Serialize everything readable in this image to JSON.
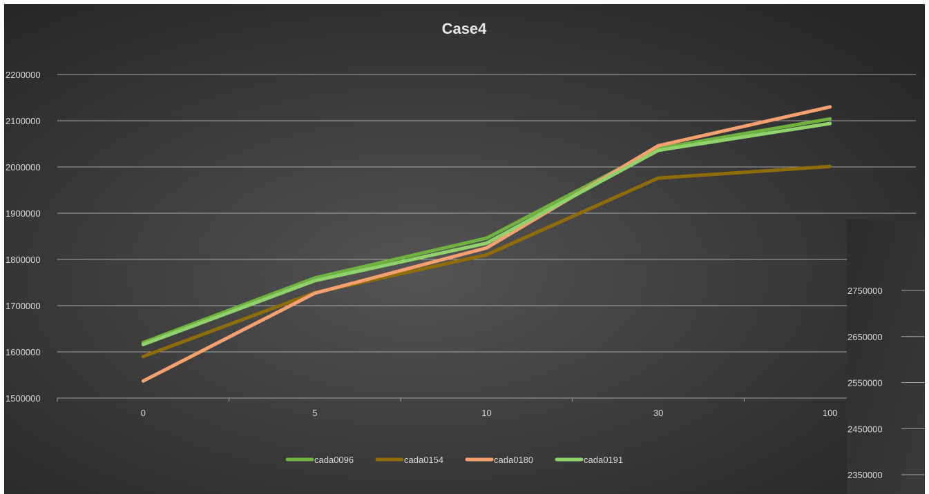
{
  "chart_data": [
    {
      "type": "line",
      "title": "Case4",
      "xlabel": "",
      "ylabel": "",
      "categories": [
        "0",
        "5",
        "10",
        "30",
        "100"
      ],
      "ylim": [
        1500000,
        2200000
      ],
      "y_ticks": [
        "1500000",
        "1600000",
        "1700000",
        "1800000",
        "1900000",
        "2000000",
        "2100000",
        "2200000"
      ],
      "grid": true,
      "legend_position": "bottom",
      "series": [
        {
          "name": "cada0096",
          "color": "#6fb23f",
          "values": [
            1620000,
            1760000,
            1846000,
            2040000,
            2104000
          ]
        },
        {
          "name": "cada0154",
          "color": "#8f6c0a",
          "values": [
            1590000,
            1728000,
            1810000,
            1976000,
            2001000
          ]
        },
        {
          "name": "cada0180",
          "color": "#f4a070",
          "values": [
            1537000,
            1727000,
            1825000,
            2046000,
            2130000
          ]
        },
        {
          "name": "cada0191",
          "color": "#8fd16a",
          "values": [
            1616000,
            1754000,
            1835000,
            2036000,
            2094000
          ]
        }
      ]
    },
    {
      "type": "line",
      "title": "",
      "categories": [],
      "ylim": [
        2350000,
        2750000
      ],
      "y_ticks": [
        "2350000",
        "2450000",
        "2550000",
        "2650000",
        "2750000"
      ],
      "grid": true,
      "series": []
    }
  ]
}
